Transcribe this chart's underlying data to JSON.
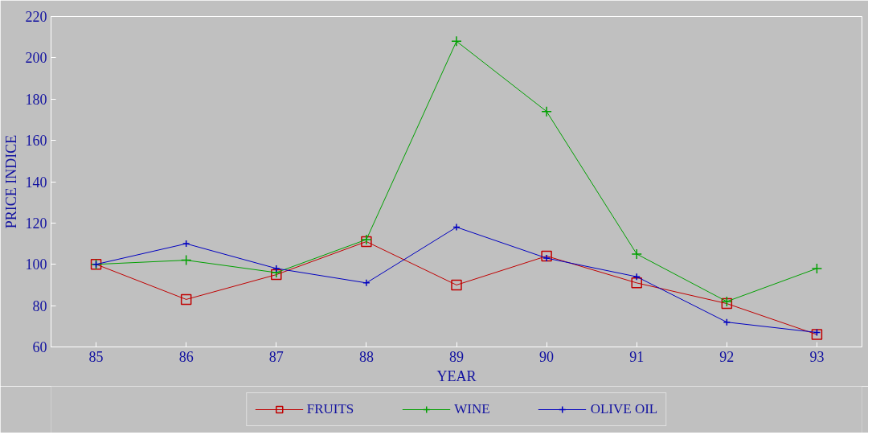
{
  "chart_data": {
    "type": "line",
    "xlabel": "YEAR",
    "ylabel": "PRICE INDICE",
    "x": [
      85,
      86,
      87,
      88,
      89,
      90,
      91,
      92,
      93
    ],
    "series": [
      {
        "name": "FRUITS",
        "color": "#c00000",
        "marker": "square",
        "values": [
          100,
          83,
          95,
          111,
          90,
          104,
          91,
          81,
          66
        ]
      },
      {
        "name": "WINE",
        "color": "#00a000",
        "marker": "cross",
        "values": [
          100,
          102,
          96,
          112,
          208,
          174,
          105,
          82,
          98
        ]
      },
      {
        "name": "OLIVE OIL",
        "color": "#0000c0",
        "marker": "cross",
        "values": [
          100,
          110,
          98,
          91,
          118,
          103,
          94,
          72,
          67
        ]
      }
    ],
    "xlim": [
      84.5,
      93.5
    ],
    "xticks": [
      85,
      86,
      87,
      88,
      89,
      90,
      91,
      92,
      93
    ],
    "ylim": [
      60,
      220
    ],
    "yticks": [
      60,
      80,
      100,
      120,
      140,
      160,
      180,
      200,
      220
    ],
    "grid": false,
    "legend": "bottom",
    "line_style": "solid"
  }
}
